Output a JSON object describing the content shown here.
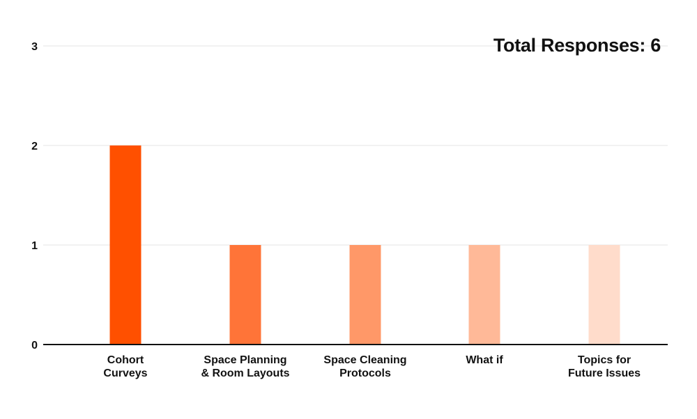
{
  "header": {
    "total_responses": "Total Responses: 6"
  },
  "chart_data": {
    "type": "bar",
    "categories": [
      [
        "Cohort",
        "Curveys"
      ],
      [
        "Space Planning",
        "& Room Layouts"
      ],
      [
        "Space Cleaning",
        "Protocols"
      ],
      [
        "What if"
      ],
      [
        "Topics for",
        "Future Issues"
      ]
    ],
    "values": [
      2,
      1,
      1,
      1,
      1
    ],
    "colors": [
      "#ff5000",
      "#ff7438",
      "#ff9868",
      "#ffb998",
      "#ffdccb"
    ],
    "title": "",
    "xlabel": "",
    "ylabel": "",
    "ylim": [
      0,
      3
    ],
    "yticks": [
      "0",
      "1",
      "2",
      "3"
    ],
    "grid": true,
    "legend": "none"
  }
}
